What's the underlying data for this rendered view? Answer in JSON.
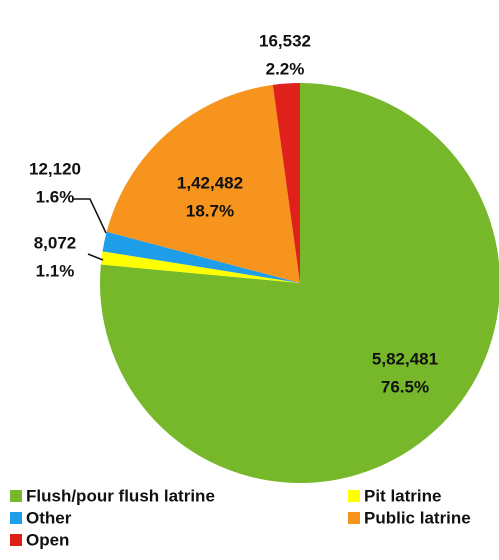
{
  "chart_data": {
    "type": "pie",
    "categories": [
      "Flush/pour flush latrine",
      "Pit latrine",
      "Other",
      "Public latrine",
      "Open"
    ],
    "values": [
      582481,
      8072,
      12120,
      142482,
      16532
    ],
    "value_labels": [
      "5,82,481",
      "8,072",
      "12,120",
      "1,42,482",
      "16,532"
    ],
    "percent_labels": [
      "76.5%",
      "1.1%",
      "1.6%",
      "18.7%",
      "2.2%"
    ],
    "colors": [
      "#76b82a",
      "#ffff00",
      "#1e9ee8",
      "#f7941d",
      "#e0201b"
    ],
    "legend": "bottom"
  }
}
